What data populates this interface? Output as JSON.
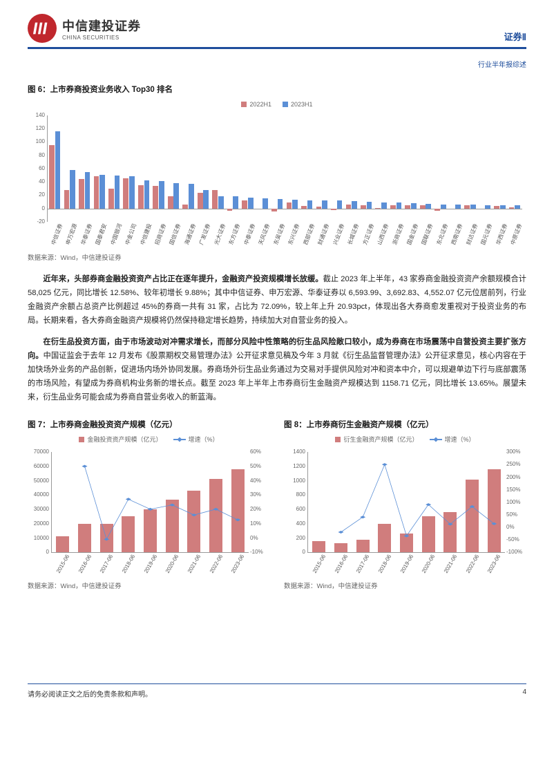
{
  "brand": {
    "name_cn": "中信建投证券",
    "name_en": "CHINA SECURITIES",
    "logo_bg": "#c0272d",
    "accent": "#1f4e9c"
  },
  "header": {
    "right_label": "证券Ⅱ",
    "sub_label": "行业半年报综述"
  },
  "fig6": {
    "title": "图 6：上市券商投资业务收入 Top30 排名",
    "source": "数据来源：Wind，中信建投证券",
    "legend": [
      {
        "label": "2022H1",
        "color": "#d07d7d"
      },
      {
        "label": "2023H1",
        "color": "#5b8fd6"
      }
    ],
    "ymin": -20,
    "ymax": 140,
    "ystep": 20,
    "categories": [
      "中信证券",
      "申万宏源",
      "华泰证券",
      "国泰君安",
      "中国银河",
      "中金公司",
      "中信建投",
      "招商证券",
      "国信证券",
      "海通证券",
      "广发证券",
      "光大证券",
      "东方证券",
      "中泰证券",
      "天风证券",
      "东吴证券",
      "东兴证券",
      "西部证券",
      "财通证券",
      "兴业证券",
      "长城证券",
      "方正证券",
      "山西证券",
      "浙商证券",
      "国金证券",
      "国联证券",
      "东北证券",
      "西南证券",
      "财达证券",
      "国元证券",
      "华西证券",
      "中原证券"
    ],
    "series_2022": [
      95,
      28,
      44,
      48,
      30,
      45,
      35,
      34,
      18,
      6,
      24,
      28,
      -4,
      12,
      0,
      -5,
      9,
      4,
      3,
      -2,
      6,
      5,
      1,
      5,
      5,
      5,
      -4,
      0,
      5,
      0,
      4,
      2
    ],
    "series_2023": [
      116,
      58,
      55,
      51,
      49,
      48,
      42,
      41,
      38,
      37,
      28,
      18,
      18,
      16,
      15,
      14,
      13,
      12,
      12,
      12,
      11,
      10,
      9,
      9,
      8,
      7,
      6,
      6,
      6,
      5,
      5,
      5
    ],
    "bar_colors": {
      "a": "#d07d7d",
      "b": "#5b8fd6"
    }
  },
  "body": {
    "p1_bold": "近年来，头部券商金融投资资产占比正在逐年提升，金融资产投资规模增长放缓。",
    "p1_rest": "截止 2023 年上半年，43 家券商金融投资资产余额规模合计 58,025 亿元，同比增长 12.58%、较年初增长 9.88%；其中中信证券、申万宏源、华泰证券以 6,593.99、3,692.83、4,552.07 亿元位居前列，行业金融资产余额占总资产比例超过 45%的券商一共有 31 家，占比为 72.09%，较上年上升 20.93pct，体现出各大券商愈发重视对于投资业务的布局。长期来看，各大券商金融资产规模将仍然保持稳定增长趋势，持续加大对自营业务的投入。",
    "p2_bold": "在衍生品投资方面，由于市场波动对冲需求增长，而部分风险中性策略的衍生品风险敞口较小，成为券商在市场震荡中自营投资主要扩张方向。",
    "p2_rest": "中国证监会于去年 12 月发布《股票期权交易管理办法》公开征求意见稿及今年 3 月就《衍生品监督管理办法》公开征求意见，核心内容在于加快场外业务的产品创新，促进场内场外协同发展。券商场外衍生品业务通过为交易对手提供风险对冲和资本中介，可以规避单边下行与底部震荡的市场风险，有望成为券商机构业务新的增长点。截至 2023 年上半年上市券商衍生金融资产规模达到 1158.71 亿元，同比增长 13.65%。展望未来，衍生品业务可能会成为券商自营业务收入的新蓝海。"
  },
  "fig7": {
    "title": "图 7：上市券商金融投资资产规模（亿元）",
    "source": "数据来源：Wind，中信建投证券",
    "legend_bar": {
      "label": "金融投资资产规模（亿元）",
      "color": "#d07d7d"
    },
    "legend_line": {
      "label": "增速（%）",
      "color": "#5b8fd6"
    },
    "categories": [
      "2015-06",
      "2016-06",
      "2017-06",
      "2018-06",
      "2019-06",
      "2020-06",
      "2021-06",
      "2022-06",
      "2023-06"
    ],
    "bars": [
      11000,
      20000,
      19800,
      25000,
      30000,
      37000,
      43000,
      51500,
      58000
    ],
    "yl_min": 0,
    "yl_max": 70000,
    "yl_step": 10000,
    "line": [
      null,
      50,
      -1,
      27,
      20,
      23,
      16,
      20,
      12.6
    ],
    "yr_min": -10,
    "yr_max": 60,
    "yr_step": 10
  },
  "fig8": {
    "title": "图 8：上市券商衍生金融资产规模（亿元）",
    "source": "数据来源：Wind，中信建投证券",
    "legend_bar": {
      "label": "衍生金融资产规模（亿元）",
      "color": "#d07d7d"
    },
    "legend_line": {
      "label": "增速（%）",
      "color": "#5b8fd6"
    },
    "categories": [
      "2015-06",
      "2016-06",
      "2017-06",
      "2018-06",
      "2019-06",
      "2020-06",
      "2021-06",
      "2022-06",
      "2023-06"
    ],
    "bars": [
      160,
      130,
      180,
      400,
      260,
      500,
      560,
      1020,
      1160
    ],
    "yl_min": 0,
    "yl_max": 1400,
    "yl_step": 200,
    "line": [
      null,
      -20,
      40,
      250,
      -35,
      90,
      12,
      82,
      13.6
    ],
    "yr_min": -100,
    "yr_max": 300,
    "yr_step": 50
  },
  "footer": {
    "disclaimer": "请务必阅读正文之后的免责条款和声明。",
    "page": "4"
  }
}
